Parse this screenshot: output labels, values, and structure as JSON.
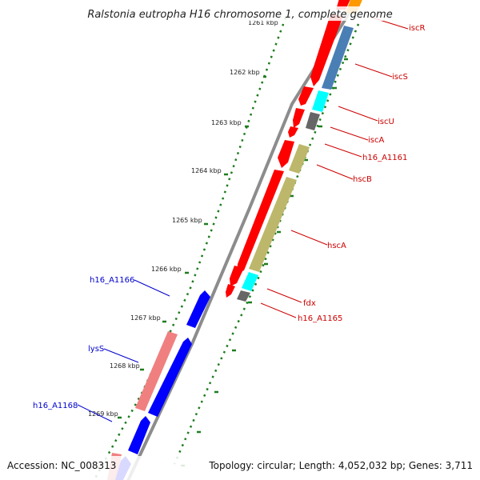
{
  "header": {
    "title": "Ralstonia eutropha H16 chromosome 1, complete genome"
  },
  "footer": {
    "accession": "Accession: NC_008313",
    "summary": "Topology: circular; Length: 4,052,032 bp; Genes: 3,711"
  },
  "colors": {
    "backbone": "#8c8c8c",
    "tick": "#1e7d1e",
    "forward_label": "#cc0000",
    "reverse_label": "#0000cc",
    "red": "#ff0000",
    "steelblue": "#4a7fb5",
    "cyan": "#00ffff",
    "gray": "#666666",
    "olive": "#bdb76b",
    "salmon": "#f08080",
    "blue": "#0000ff",
    "orange": "#ff9900"
  },
  "ticks": [
    {
      "label": "1262 kbp"
    },
    {
      "label": "1263 kbp"
    },
    {
      "label": "1264 kbp"
    },
    {
      "label": "1265 kbp"
    },
    {
      "label": "1266 kbp"
    },
    {
      "label": "1267 kbp"
    },
    {
      "label": "1268 kbp"
    },
    {
      "label": "1269 kbp"
    }
  ],
  "partial_tick_label": "1261 kbp",
  "gene_labels": {
    "iscR": "iscR",
    "iscS": "iscS",
    "iscU": "iscU",
    "iscA": "iscA",
    "h16_A1161": "h16_A1161",
    "hscB": "hscB",
    "hscA": "hscA",
    "fdx": "fdx",
    "h16_A1165": "h16_A1165",
    "h16_A1166": "h16_A1166",
    "lysS": "lysS",
    "h16_A1168": "h16_A1168"
  }
}
